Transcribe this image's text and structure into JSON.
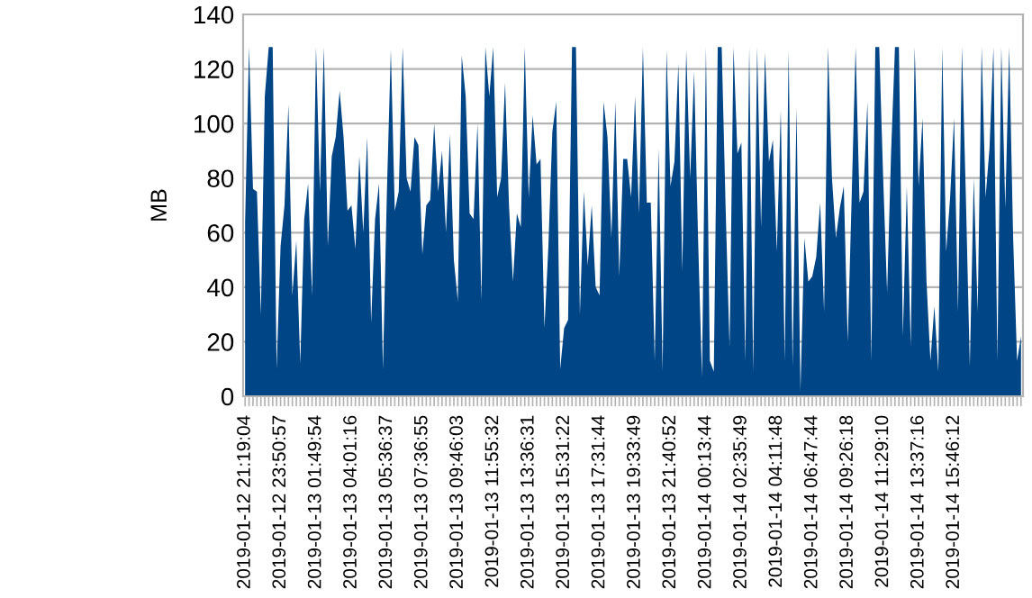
{
  "chart_data": {
    "type": "area",
    "ylabel": "MB",
    "color": "#004586",
    "ylim": [
      0,
      140
    ],
    "yticks": [
      0,
      20,
      40,
      60,
      80,
      100,
      120,
      140
    ],
    "grid": "y",
    "categories": [
      "2019-01-12 21:19:04",
      null,
      null,
      null,
      null,
      null,
      null,
      null,
      null,
      "2019-01-12 23:50:57",
      null,
      null,
      null,
      null,
      null,
      null,
      null,
      null,
      "2019-01-13 01:49:54",
      null,
      null,
      null,
      null,
      null,
      null,
      null,
      null,
      "2019-01-13 04:01:16",
      null,
      null,
      null,
      null,
      null,
      null,
      null,
      null,
      "2019-01-13 05:36:37",
      null,
      null,
      null,
      null,
      null,
      null,
      null,
      null,
      "2019-01-13 07:36:55",
      null,
      null,
      null,
      null,
      null,
      null,
      null,
      null,
      "2019-01-13 09:46:03",
      null,
      null,
      null,
      null,
      null,
      null,
      null,
      null,
      "2019-01-13 11:55:32",
      null,
      null,
      null,
      null,
      null,
      null,
      null,
      null,
      "2019-01-13 13:36:31",
      null,
      null,
      null,
      null,
      null,
      null,
      null,
      null,
      "2019-01-13 15:31:22",
      null,
      null,
      null,
      null,
      null,
      null,
      null,
      null,
      "2019-01-13 17:31:44",
      null,
      null,
      null,
      null,
      null,
      null,
      null,
      null,
      "2019-01-13 19:33:49",
      null,
      null,
      null,
      null,
      null,
      null,
      null,
      null,
      "2019-01-13 21:40:52",
      null,
      null,
      null,
      null,
      null,
      null,
      null,
      null,
      "2019-01-14 00:13:44",
      null,
      null,
      null,
      null,
      null,
      null,
      null,
      null,
      "2019-01-14 02:35:49",
      null,
      null,
      null,
      null,
      null,
      null,
      null,
      null,
      "2019-01-14 04:11:48",
      null,
      null,
      null,
      null,
      null,
      null,
      null,
      null,
      "2019-01-14 06:47:44",
      null,
      null,
      null,
      null,
      null,
      null,
      null,
      null,
      "2019-01-14 09:26:18",
      null,
      null,
      null,
      null,
      null,
      null,
      null,
      null,
      "2019-01-14 11:29:10",
      null,
      null,
      null,
      null,
      null,
      null,
      null,
      null,
      "2019-01-14 13:37:16",
      null,
      null,
      null,
      null,
      null,
      null,
      null,
      null,
      "2019-01-14 15:46:12",
      null,
      null,
      null,
      null,
      null,
      null,
      null,
      null,
      null,
      null,
      null,
      null,
      null,
      null,
      null,
      null,
      null
    ],
    "values": [
      64,
      128,
      76,
      75,
      30,
      110,
      128,
      128,
      10,
      55,
      70,
      107,
      37,
      57,
      12,
      65,
      78,
      37,
      128,
      75,
      128,
      55,
      88,
      95,
      112,
      95,
      68,
      70,
      54,
      88,
      60,
      95,
      27,
      65,
      78,
      10,
      75,
      127,
      68,
      75,
      128,
      80,
      75,
      95,
      92,
      52,
      70,
      72,
      100,
      75,
      90,
      60,
      96,
      50,
      35,
      125,
      110,
      67,
      65,
      100,
      35,
      128,
      110,
      128,
      73,
      80,
      115,
      70,
      42,
      67,
      62,
      128,
      73,
      103,
      85,
      87,
      25,
      55,
      97,
      108,
      10,
      25,
      28,
      128,
      128,
      30,
      75,
      48,
      70,
      40,
      37,
      108,
      95,
      58,
      108,
      44,
      87,
      87,
      73,
      110,
      67,
      128,
      71,
      71,
      13,
      91,
      9,
      127,
      77,
      86,
      122,
      46,
      127,
      80,
      119,
      58,
      7,
      128,
      13,
      9,
      128,
      128,
      69,
      18,
      128,
      89,
      93,
      13,
      128,
      9,
      128,
      62,
      126,
      86,
      94,
      53,
      105,
      13,
      127,
      11,
      106,
      2,
      58,
      42,
      44,
      51,
      71,
      31,
      128,
      80,
      58,
      69,
      77,
      20,
      73,
      128,
      71,
      75,
      108,
      13,
      128,
      128,
      80,
      38,
      89,
      128,
      128,
      22,
      77,
      18,
      128,
      77,
      102,
      42,
      13,
      33,
      9,
      128,
      53,
      73,
      102,
      31,
      128,
      73,
      11,
      80,
      31,
      128,
      73,
      91,
      128,
      13,
      128,
      69,
      128,
      58,
      13,
      22
    ]
  }
}
